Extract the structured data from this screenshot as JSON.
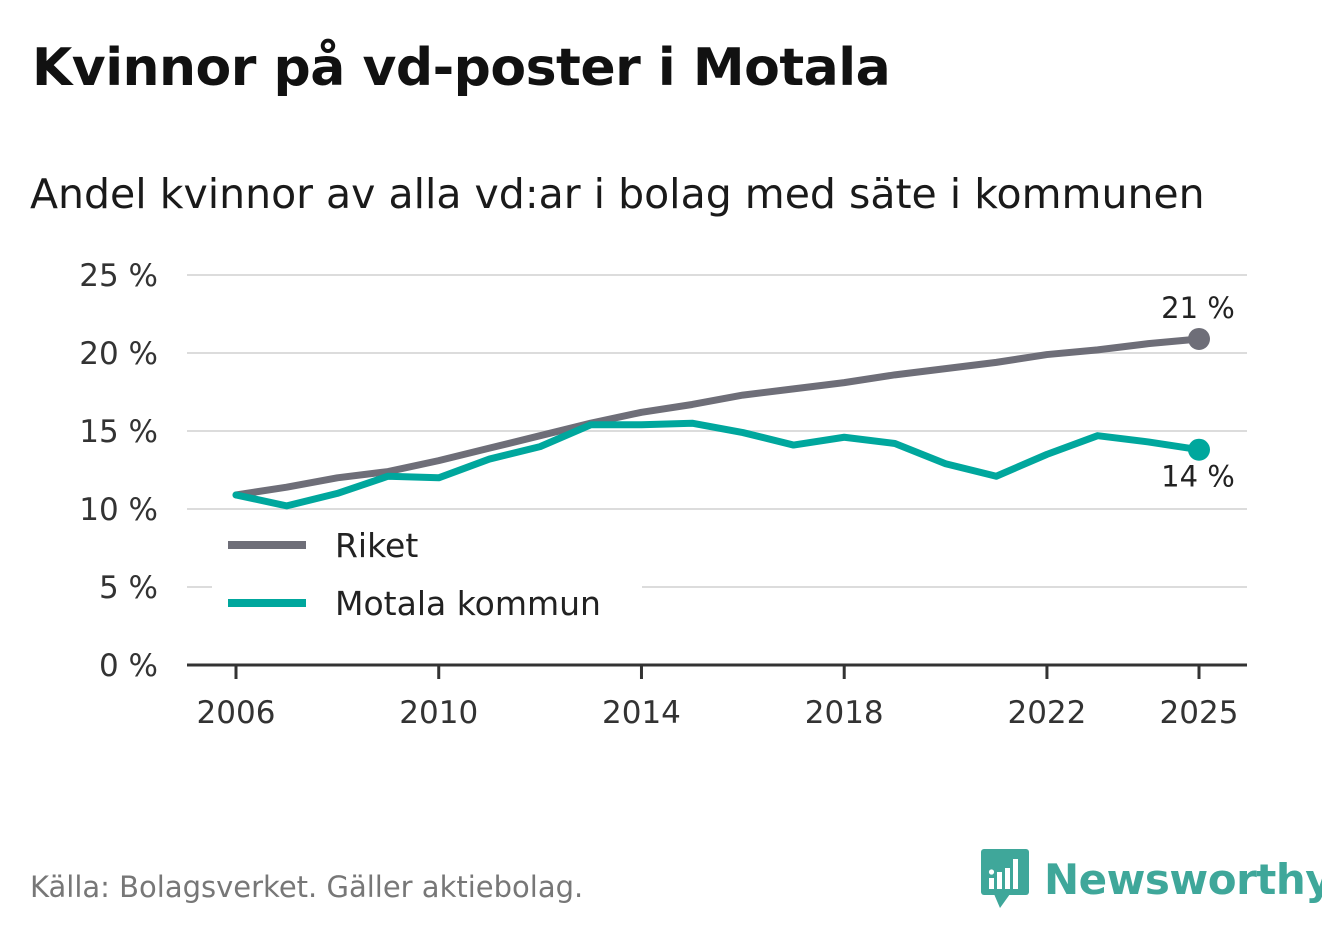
{
  "header": {
    "title": "Kvinnor på vd-poster i Motala",
    "subtitle": "Andel kvinnor av alla vd:ar i bolag med säte i kommunen"
  },
  "footer": {
    "source": "Källa: Bolagsverket. Gäller aktiebolag.",
    "brand": "Newsworthy",
    "brand_icon": "newsworthy-logo-icon",
    "brand_color": "#3fa79a"
  },
  "chart_data": {
    "type": "line",
    "title": "Kvinnor på vd-poster i Motala",
    "subtitle": "Andel kvinnor av alla vd:ar i bolag med säte i kommunen",
    "xlabel": "",
    "ylabel": "",
    "x": [
      2006,
      2007,
      2008,
      2009,
      2010,
      2011,
      2012,
      2013,
      2014,
      2015,
      2016,
      2017,
      2018,
      2019,
      2020,
      2021,
      2022,
      2023,
      2024,
      2025
    ],
    "xlim": [
      2006,
      2025
    ],
    "ylim": [
      0,
      25
    ],
    "x_ticks": [
      2006,
      2010,
      2014,
      2018,
      2022,
      2025
    ],
    "x_tick_labels": [
      "2006",
      "2010",
      "2014",
      "2018",
      "2022",
      "2025"
    ],
    "y_ticks": [
      0,
      5,
      10,
      15,
      20,
      25
    ],
    "y_tick_labels": [
      "0 %",
      "5 %",
      "10 %",
      "15 %",
      "20 %",
      "25 %"
    ],
    "grid": true,
    "legend_position": "bottom-left",
    "series": [
      {
        "name": "Riket",
        "color": "#6e6e78",
        "values": [
          10.9,
          11.4,
          12.0,
          12.4,
          13.1,
          13.9,
          14.7,
          15.5,
          16.2,
          16.7,
          17.3,
          17.7,
          18.1,
          18.6,
          19.0,
          19.4,
          19.9,
          20.2,
          20.6,
          20.9
        ],
        "end_label": "21 %"
      },
      {
        "name": "Motala kommun",
        "color": "#00a79d",
        "values": [
          10.9,
          10.2,
          11.0,
          12.1,
          12.0,
          13.2,
          14.0,
          15.4,
          15.4,
          15.5,
          14.9,
          14.1,
          14.6,
          14.2,
          12.9,
          12.1,
          13.5,
          14.7,
          14.3,
          13.8
        ],
        "end_label": "14 %"
      }
    ]
  }
}
